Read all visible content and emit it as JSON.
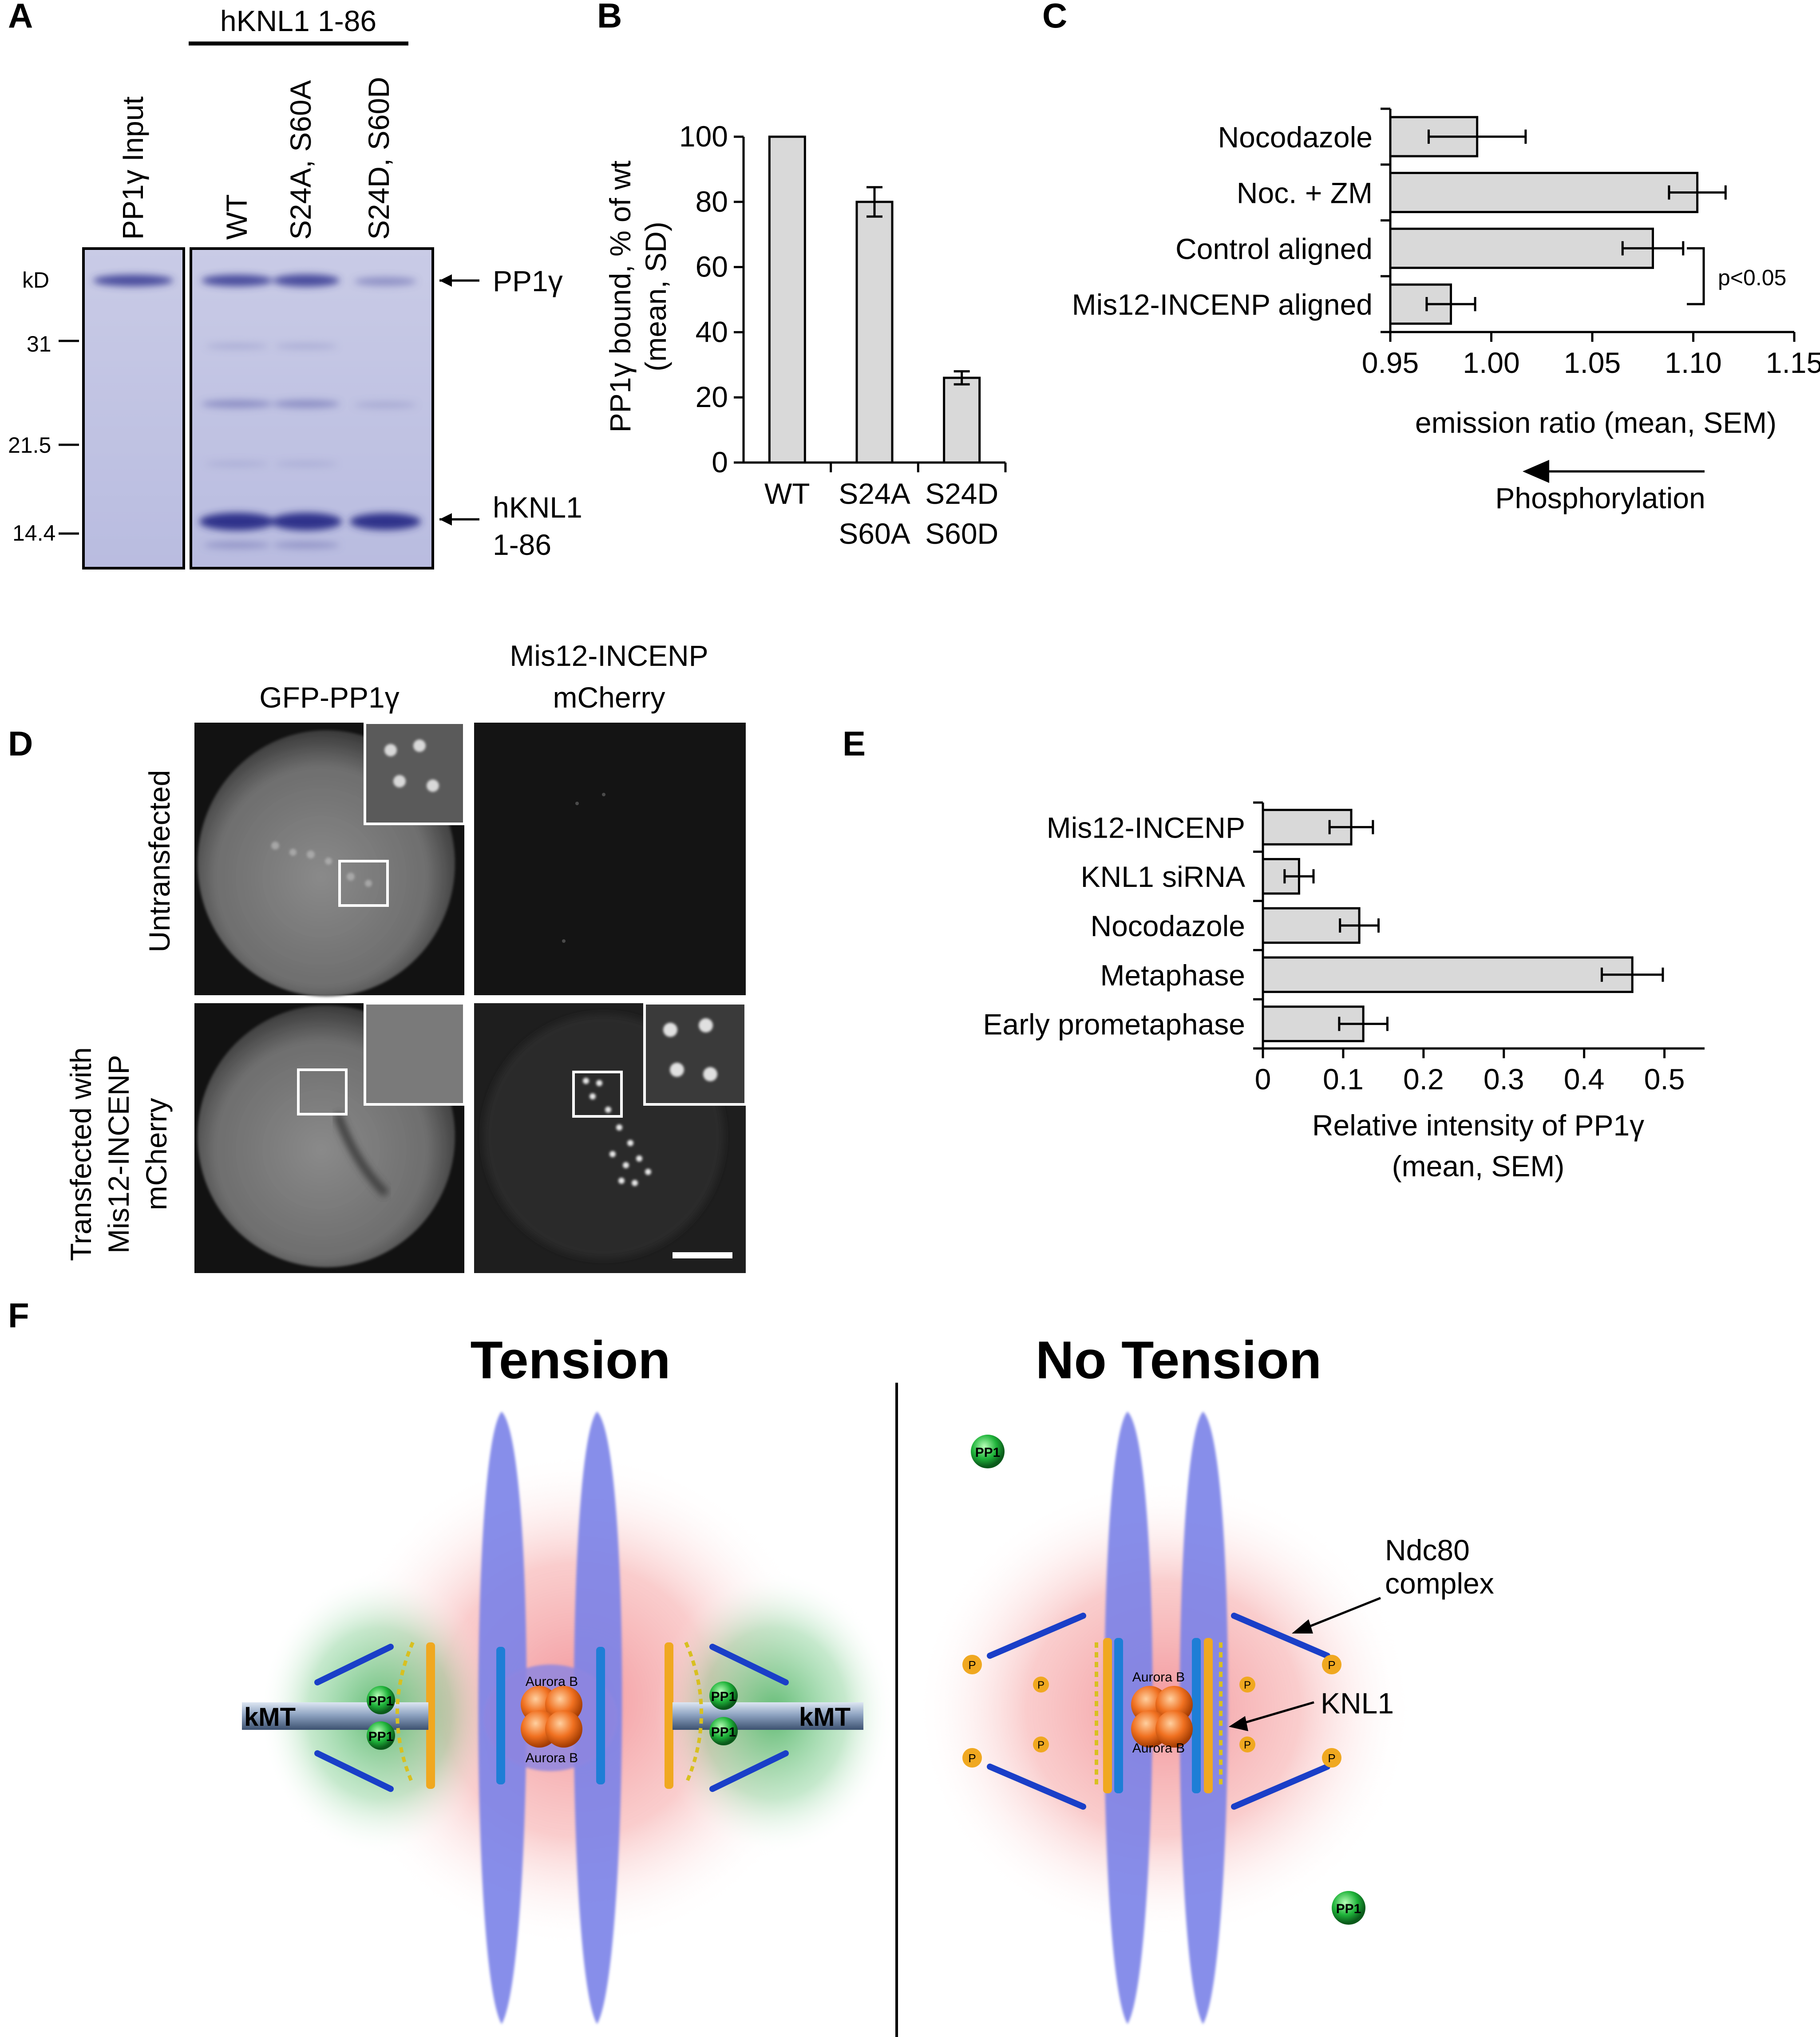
{
  "panels": {
    "A": {
      "letter": "A",
      "group_label": "hKNL1 1-86",
      "lanes": [
        "PP1γ Input",
        "WT",
        "S24A, S60A",
        "S24D, S60D"
      ],
      "ladder": [
        "kD",
        "31",
        "21.5",
        "14.4"
      ],
      "band_labels": [
        "PP1γ",
        "hKNL1",
        "1-86"
      ]
    },
    "B": {
      "letter": "B",
      "chart_data": {
        "type": "bar",
        "categories": [
          "WT",
          "S24A S60A",
          "S24D S60D"
        ],
        "category_lines": [
          [
            "WT"
          ],
          [
            "S24A",
            "S60A"
          ],
          [
            "S24D",
            "S60D"
          ]
        ],
        "values": [
          100,
          80,
          26
        ],
        "errors": [
          0,
          4.5,
          2
        ],
        "ylabel_lines": [
          "PP1γ bound, % of wt",
          "(mean, SD)"
        ],
        "ylim": [
          0,
          100
        ],
        "yticks": [
          "0",
          "20",
          "40",
          "60",
          "80",
          "100"
        ]
      }
    },
    "C": {
      "letter": "C",
      "chart_data": {
        "type": "bar",
        "orientation": "horizontal",
        "categories": [
          "Nocodazole",
          "Noc. + ZM",
          "Control aligned",
          "Mis12-INCENP aligned"
        ],
        "values": [
          0.993,
          1.102,
          1.08,
          0.98
        ],
        "errors": [
          0.024,
          0.014,
          0.015,
          0.012
        ],
        "xlim": [
          0.95,
          1.15
        ],
        "xticks": [
          "0.95",
          "1.00",
          "1.05",
          "1.10",
          "1.15"
        ],
        "xlabel": "emission ratio (mean, SEM)",
        "annotation": "p<0.05",
        "arrow_label": "Phosphorylation"
      }
    },
    "D": {
      "letter": "D",
      "column_labels": [
        "GFP-PP1γ",
        "Mis12-INCENP",
        "mCherry"
      ],
      "row_labels": [
        "Untransfected",
        "Transfected with",
        "Mis12-INCENP",
        "mCherry"
      ]
    },
    "E": {
      "letter": "E",
      "chart_data": {
        "type": "bar",
        "orientation": "horizontal",
        "categories": [
          "Mis12-INCENP",
          "KNL1 siRNA",
          "Nocodazole",
          "Metaphase",
          "Early prometaphase"
        ],
        "values": [
          0.11,
          0.045,
          0.12,
          0.46,
          0.125
        ],
        "errors": [
          0.027,
          0.018,
          0.024,
          0.038,
          0.03
        ],
        "xlim": [
          0,
          0.55
        ],
        "xticks": [
          "0",
          "0.1",
          "0.2",
          "0.3",
          "0.4",
          "0.5"
        ],
        "xlabel_lines": [
          "Relative intensity of PP1γ",
          "(mean, SEM)"
        ]
      }
    },
    "F": {
      "letter": "F",
      "left_title": "Tension",
      "right_title": "No Tension",
      "labels": {
        "kmt": "kMT",
        "pp1": "PP1",
        "aurora": "Aurora B",
        "ndc80": [
          "Ndc80",
          "complex"
        ],
        "knl1": "KNL1",
        "p": "P"
      }
    }
  }
}
